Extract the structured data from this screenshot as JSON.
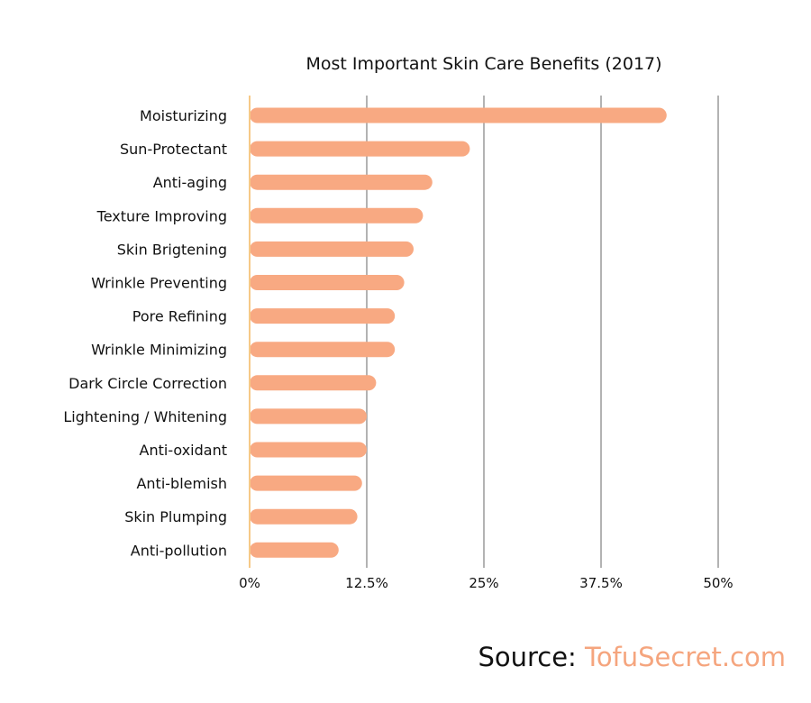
{
  "chart_data": {
    "type": "bar",
    "orientation": "horizontal",
    "title": "Most Important Skin Care Benefits (2017)",
    "categories": [
      "Moisturizing",
      "Sun-Protectant",
      "Anti-aging",
      "Texture Improving",
      "Skin Brigtening",
      "Wrinkle Preventing",
      "Pore Refining",
      "Wrinkle Minimizing",
      "Dark Circle Correction",
      "Lightening / Whitening",
      "Anti-oxidant",
      "Anti-blemish",
      "Skin Plumping",
      "Anti-pollution"
    ],
    "values": [
      44.5,
      23.5,
      19.5,
      18.5,
      17.5,
      16.5,
      15.5,
      15.5,
      13.5,
      12.5,
      12.5,
      12,
      11.5,
      9.5
    ],
    "unit": "%",
    "xlim": [
      0,
      50
    ],
    "ticks": [
      0,
      12.5,
      25,
      37.5,
      50
    ],
    "tick_labels": [
      "0%",
      "12.5%",
      "25%",
      "37.5%",
      "50%"
    ],
    "grid": true,
    "bar_color": "#f8a982",
    "baseline_color": "#f6c987",
    "grid_color": "#b3b3b3"
  },
  "source": {
    "prefix": "Source: ",
    "site": "TofuSecret.com"
  }
}
